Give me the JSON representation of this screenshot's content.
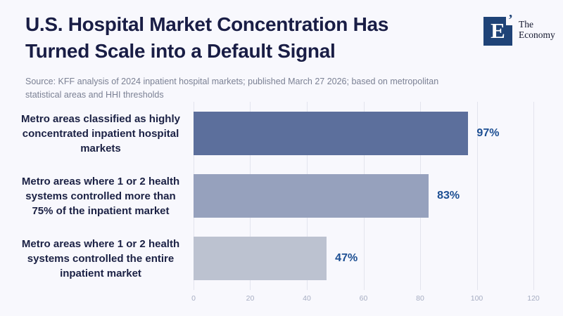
{
  "header": {
    "title_lines": [
      "U.S. Hospital Market Concentration Has",
      "Turned Scale into a Default Signal"
    ],
    "logo": {
      "mark": "E",
      "quote": "’",
      "name_line1": "The",
      "name_line2": "Economy",
      "square_color": "#1f4377"
    }
  },
  "source": {
    "line1": "Source: KFF analysis of 2024 inpatient hospital markets; published March 27 2026; based on metropolitan",
    "line2": "statistical areas and HHI thresholds"
  },
  "chart_data": {
    "type": "bar",
    "orientation": "horizontal",
    "title": "U.S. Hospital Market Concentration Has Turned Scale into a Default Signal",
    "categories": [
      "Metro areas classified as highly concentrated inpatient hospital markets",
      "Metro areas where 1 or 2 health systems controlled more than 75% of the inpatient market",
      "Metro areas where 1 or 2 health systems controlled the entire inpatient market"
    ],
    "values": [
      97,
      83,
      47
    ],
    "value_labels": [
      "97%",
      "83%",
      "47%"
    ],
    "xlabel": "",
    "ylabel": "",
    "xlim": [
      0,
      120
    ],
    "x_ticks": [
      0,
      20,
      40,
      60,
      80,
      100,
      120
    ],
    "grid": true,
    "legend": false,
    "bar_colors": [
      "#5c6f9c",
      "#96a1bd",
      "#bcc2d0"
    ],
    "value_label_color": "#1d4f93",
    "background_color": "#f8f8fd"
  }
}
